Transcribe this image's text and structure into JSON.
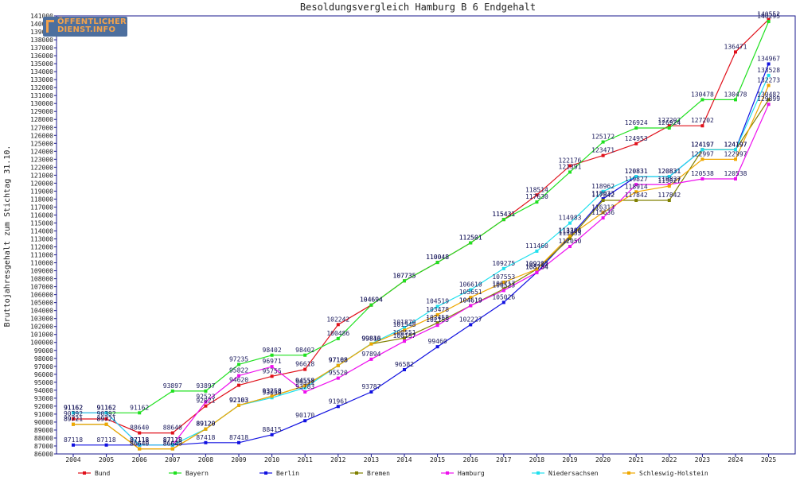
{
  "logo": {
    "line1": "ÖFFENTLICHER",
    "line2": "DIENST.INFO"
  },
  "chart_data": {
    "type": "line",
    "title": "Besoldungsvergleich Hamburg B 6 Endgehalt",
    "xlabel": "",
    "ylabel": "Bruttojahresgehalt zum Stichtag 31.10.",
    "x": [
      2004,
      2005,
      2006,
      2007,
      2008,
      2009,
      2010,
      2011,
      2012,
      2013,
      2014,
      2015,
      2016,
      2017,
      2018,
      2019,
      2020,
      2021,
      2022,
      2023,
      2024,
      2025
    ],
    "ylim": [
      86000,
      141000
    ],
    "ytick_step": 1000,
    "grid": false,
    "legend_position": "bottom",
    "series": [
      {
        "name": "Bund",
        "color": "#e0101a",
        "values": [
          90392,
          90392,
          88640,
          88640,
          92021,
          94620,
          95755,
          96618,
          102242,
          104694,
          107735,
          110048,
          112501,
          115431,
          118514,
          122176,
          123471,
          124953,
          127202,
          127202,
          136471,
          140552
        ]
      },
      {
        "name": "Bayern",
        "color": "#20e020",
        "values": [
          91162,
          91162,
          91162,
          93897,
          93897,
          97235,
          98402,
          98402,
          100486,
          104694,
          107735,
          110048,
          112501,
          115431,
          117630,
          121391,
          125172,
          126924,
          126924,
          130478,
          130478,
          140295
        ]
      },
      {
        "name": "Berlin",
        "color": "#1010e0",
        "values": [
          87118,
          87118,
          87118,
          87118,
          87418,
          87418,
          88415,
          90170,
          91961,
          93787,
          96582,
          99460,
          102227,
          105026,
          108784,
          113300,
          118033,
          120831,
          120831,
          124197,
          124197,
          134967
        ]
      },
      {
        "name": "Bremen",
        "color": "#808000",
        "values": [
          89721,
          89721,
          86640,
          86640,
          89120,
          92103,
          93258,
          94558,
          97108,
          99816,
          100551,
          102458,
          104619,
          106717,
          109205,
          113055,
          117842,
          117842,
          117842,
          124197,
          124197,
          130482
        ]
      },
      {
        "name": "Hamburg",
        "color": "#ee10ee",
        "values": [
          91162,
          91162,
          87118,
          87118,
          92523,
          95822,
          96971,
          93783,
          95520,
          97894,
          100157,
          102155,
          104619,
          106523,
          108784,
          112050,
          115636,
          119827,
          119827,
          120538,
          120538,
          129899
        ]
      },
      {
        "name": "Niedersachsen",
        "color": "#20e0ee",
        "values": [
          91162,
          91162,
          87118,
          87118,
          89120,
          92103,
          93058,
          94311,
          97108,
          99843,
          101870,
          104519,
          106610,
          109275,
          111460,
          114983,
          118962,
          120831,
          120831,
          124197,
          124197,
          133528
        ]
      },
      {
        "name": "Schleswig-Holstein",
        "color": "#f0a800",
        "values": [
          89721,
          89721,
          86640,
          86640,
          89120,
          92103,
          93258,
          94558,
          97108,
          99816,
          101548,
          103478,
          105651,
          107553,
          109212,
          113394,
          116313,
          118914,
          119627,
          122997,
          122997,
          132273
        ]
      }
    ]
  }
}
